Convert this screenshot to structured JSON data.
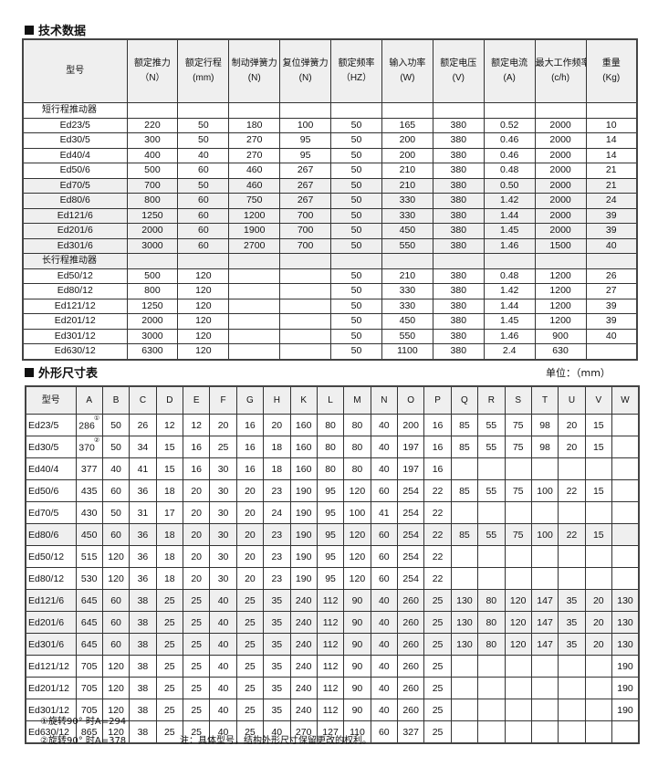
{
  "section1": {
    "title": "技术数据",
    "headers": [
      [
        "型号",
        ""
      ],
      [
        "额定推力",
        "（N）"
      ],
      [
        "额定行程",
        "(mm)"
      ],
      [
        "制动弹簧力",
        "(N)"
      ],
      [
        "复位弹簧力",
        "(N)"
      ],
      [
        "额定频率",
        "（HZ）"
      ],
      [
        "输入功率",
        "(W)"
      ],
      [
        "额定电压",
        "(V)"
      ],
      [
        "额定电流",
        "(A)"
      ],
      [
        "最大工作频率",
        "(c/h)"
      ],
      [
        "重量",
        "(Kg)"
      ]
    ],
    "groups": [
      {
        "label": "短行程推动器",
        "rows": [
          [
            "Ed23/5",
            "220",
            "50",
            "180",
            "100",
            "50",
            "165",
            "380",
            "0.52",
            "2000",
            "10"
          ],
          [
            "Ed30/5",
            "300",
            "50",
            "270",
            "95",
            "50",
            "200",
            "380",
            "0.46",
            "2000",
            "14"
          ],
          [
            "Ed40/4",
            "400",
            "40",
            "270",
            "95",
            "50",
            "200",
            "380",
            "0.46",
            "2000",
            "14"
          ],
          [
            "Ed50/6",
            "500",
            "60",
            "460",
            "267",
            "50",
            "210",
            "380",
            "0.48",
            "2000",
            "21"
          ],
          [
            "Ed70/5",
            "700",
            "50",
            "460",
            "267",
            "50",
            "210",
            "380",
            "0.50",
            "2000",
            "21"
          ],
          [
            "Ed80/6",
            "800",
            "60",
            "750",
            "267",
            "50",
            "330",
            "380",
            "1.42",
            "2000",
            "24"
          ],
          [
            "Ed121/6",
            "1250",
            "60",
            "1200",
            "700",
            "50",
            "330",
            "380",
            "1.44",
            "2000",
            "39"
          ],
          [
            "Ed201/6",
            "2000",
            "60",
            "1900",
            "700",
            "50",
            "450",
            "380",
            "1.45",
            "2000",
            "39"
          ],
          [
            "Ed301/6",
            "3000",
            "60",
            "2700",
            "700",
            "50",
            "550",
            "380",
            "1.46",
            "1500",
            "40"
          ]
        ]
      },
      {
        "label": "长行程推动器",
        "rows": [
          [
            "Ed50/12",
            "500",
            "120",
            "",
            "",
            "50",
            "210",
            "380",
            "0.48",
            "1200",
            "26"
          ],
          [
            "Ed80/12",
            "800",
            "120",
            "",
            "",
            "50",
            "330",
            "380",
            "1.42",
            "1200",
            "27"
          ],
          [
            "Ed121/12",
            "1250",
            "120",
            "",
            "",
            "50",
            "330",
            "380",
            "1.44",
            "1200",
            "39"
          ],
          [
            "Ed201/12",
            "2000",
            "120",
            "",
            "",
            "50",
            "450",
            "380",
            "1.45",
            "1200",
            "39"
          ],
          [
            "Ed301/12",
            "3000",
            "120",
            "",
            "",
            "50",
            "550",
            "380",
            "1.46",
            "900",
            "40"
          ],
          [
            "Ed630/12",
            "6300",
            "120",
            "",
            "",
            "50",
            "1100",
            "380",
            "2.4",
            "630",
            ""
          ]
        ]
      }
    ]
  },
  "section2": {
    "title": "外形尺寸表",
    "unit": "单位：（mm）",
    "headers": [
      "型号",
      "A",
      "B",
      "C",
      "D",
      "E",
      "F",
      "G",
      "H",
      "K",
      "L",
      "M",
      "N",
      "O",
      "P",
      "Q",
      "R",
      "S",
      "T",
      "U",
      "V",
      "W"
    ],
    "rows": [
      [
        "Ed23/5",
        "286",
        "50",
        "26",
        "12",
        "12",
        "20",
        "16",
        "20",
        "160",
        "80",
        "80",
        "40",
        "200",
        "16",
        "85",
        "55",
        "75",
        "98",
        "20",
        "15",
        ""
      ],
      [
        "Ed30/5",
        "370",
        "50",
        "34",
        "15",
        "16",
        "25",
        "16",
        "18",
        "160",
        "80",
        "80",
        "40",
        "197",
        "16",
        "85",
        "55",
        "75",
        "98",
        "20",
        "15",
        ""
      ],
      [
        "Ed40/4",
        "377",
        "40",
        "41",
        "15",
        "16",
        "30",
        "16",
        "18",
        "160",
        "80",
        "80",
        "40",
        "197",
        "16",
        "",
        "",
        "",
        "",
        "",
        "",
        ""
      ],
      [
        "Ed50/6",
        "435",
        "60",
        "36",
        "18",
        "20",
        "30",
        "20",
        "23",
        "190",
        "95",
        "120",
        "60",
        "254",
        "22",
        "85",
        "55",
        "75",
        "100",
        "22",
        "15",
        ""
      ],
      [
        "Ed70/5",
        "430",
        "50",
        "31",
        "17",
        "20",
        "30",
        "20",
        "24",
        "190",
        "95",
        "100",
        "41",
        "254",
        "22",
        "",
        "",
        "",
        "",
        "",
        "",
        ""
      ],
      [
        "Ed80/6",
        "450",
        "60",
        "36",
        "18",
        "20",
        "30",
        "20",
        "23",
        "190",
        "95",
        "120",
        "60",
        "254",
        "22",
        "85",
        "55",
        "75",
        "100",
        "22",
        "15",
        ""
      ],
      [
        "Ed50/12",
        "515",
        "120",
        "36",
        "18",
        "20",
        "30",
        "20",
        "23",
        "190",
        "95",
        "120",
        "60",
        "254",
        "22",
        "",
        "",
        "",
        "",
        "",
        "",
        ""
      ],
      [
        "Ed80/12",
        "530",
        "120",
        "36",
        "18",
        "20",
        "30",
        "20",
        "23",
        "190",
        "95",
        "120",
        "60",
        "254",
        "22",
        "",
        "",
        "",
        "",
        "",
        "",
        ""
      ],
      [
        "Ed121/6",
        "645",
        "60",
        "38",
        "25",
        "25",
        "40",
        "25",
        "35",
        "240",
        "112",
        "90",
        "40",
        "260",
        "25",
        "130",
        "80",
        "120",
        "147",
        "35",
        "20",
        "130"
      ],
      [
        "Ed201/6",
        "645",
        "60",
        "38",
        "25",
        "25",
        "40",
        "25",
        "35",
        "240",
        "112",
        "90",
        "40",
        "260",
        "25",
        "130",
        "80",
        "120",
        "147",
        "35",
        "20",
        "130"
      ],
      [
        "Ed301/6",
        "645",
        "60",
        "38",
        "25",
        "25",
        "40",
        "25",
        "35",
        "240",
        "112",
        "90",
        "40",
        "260",
        "25",
        "130",
        "80",
        "120",
        "147",
        "35",
        "20",
        "130"
      ],
      [
        "Ed121/12",
        "705",
        "120",
        "38",
        "25",
        "25",
        "40",
        "25",
        "35",
        "240",
        "112",
        "90",
        "40",
        "260",
        "25",
        "",
        "",
        "",
        "",
        "",
        "",
        "190"
      ],
      [
        "Ed201/12",
        "705",
        "120",
        "38",
        "25",
        "25",
        "40",
        "25",
        "35",
        "240",
        "112",
        "90",
        "40",
        "260",
        "25",
        "",
        "",
        "",
        "",
        "",
        "",
        "190"
      ],
      [
        "Ed301/12",
        "705",
        "120",
        "38",
        "25",
        "25",
        "40",
        "25",
        "35",
        "240",
        "112",
        "90",
        "40",
        "260",
        "25",
        "",
        "",
        "",
        "",
        "",
        "",
        "190"
      ],
      [
        "Ed630/12",
        "865",
        "120",
        "38",
        "25",
        "25",
        "40",
        "25",
        "40",
        "270",
        "127",
        "110",
        "60",
        "327",
        "25",
        "",
        "",
        "",
        "",
        "",
        "",
        ""
      ]
    ],
    "marks": {
      "0": "①",
      "1": "②"
    },
    "notes": [
      "①旋转90° 时A=294",
      "②旋转90° 时A=378"
    ],
    "remark": "注：具体型号，结构外形尺寸保留更改的权利。"
  }
}
